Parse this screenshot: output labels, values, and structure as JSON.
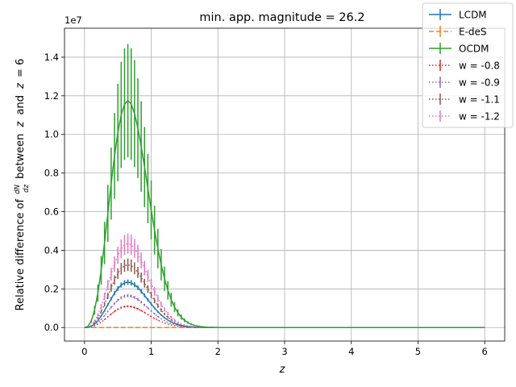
{
  "chart_data": {
    "type": "line",
    "title": "min. app. magnitude = 26.2",
    "xlabel": "z",
    "ylabel_prefix": "Relative difference of",
    "ylabel_frac_num": "dN",
    "ylabel_frac_den": "dz",
    "ylabel_between": "between",
    "ylabel_z": "z",
    "ylabel_and": "and",
    "ylabel_eq": "= 6",
    "offset_text": "1e7",
    "xlim": [
      -0.3,
      6.3
    ],
    "ylim": [
      -700000,
      15500000
    ],
    "xticks": [
      0,
      1,
      2,
      3,
      4,
      5,
      6
    ],
    "xtick_labels": [
      "0",
      "1",
      "2",
      "3",
      "4",
      "5",
      "6"
    ],
    "yticks": [
      0,
      2000000,
      4000000,
      6000000,
      8000000,
      10000000,
      12000000,
      14000000
    ],
    "ytick_labels": [
      "0.0",
      "0.2",
      "0.4",
      "0.6",
      "0.8",
      "1.0",
      "1.2",
      "1.4"
    ],
    "grid": true,
    "legend_position": "top-right",
    "series": [
      {
        "name": "LCDM",
        "color": "#1f77b4",
        "dash": "solid",
        "peak": 23500000,
        "err_frac": 0.06
      },
      {
        "name": "E-deS",
        "color": "#ff7f0e",
        "dash": "dashed",
        "peak": 0,
        "err_frac": 0
      },
      {
        "name": "OCDM",
        "color": "#2ca02c",
        "dash": "solid",
        "peak": 117500000,
        "err_frac": 0.25
      },
      {
        "name": "w = -0.8",
        "color": "#d62728",
        "dash": "dotted",
        "peak": 11000000,
        "err_frac": 0.05
      },
      {
        "name": "w = -0.9",
        "color": "#9467bd",
        "dash": "dotted",
        "peak": 16500000,
        "err_frac": 0.05
      },
      {
        "name": "w = -1.1",
        "color": "#8c564b",
        "dash": "dotted",
        "peak": 32500000,
        "err_frac": 0.1
      },
      {
        "name": "w = -1.2",
        "color": "#e377c2",
        "dash": "dotted",
        "peak": 43500000,
        "err_frac": 0.12
      }
    ],
    "curve_shape": {
      "peak_z": 0.65,
      "a": 2.6,
      "b": 1.5
    }
  }
}
